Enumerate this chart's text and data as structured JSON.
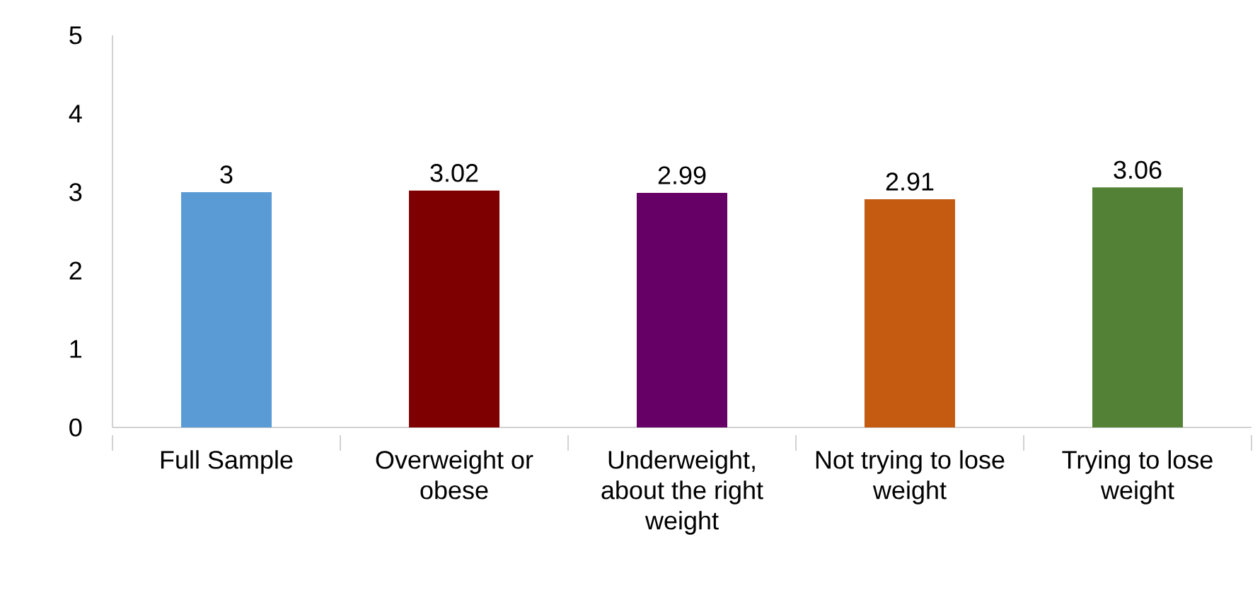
{
  "chart_data": {
    "type": "bar",
    "categories": [
      "Full Sample",
      "Overweight or obese",
      "Underweight, about the right weight",
      "Not trying to lose weight",
      "Trying to lose weight"
    ],
    "values": [
      3,
      3.02,
      2.99,
      2.91,
      3.06
    ],
    "colors": [
      "#5b9bd5",
      "#7f0000",
      "#660066",
      "#c55a11",
      "#538135"
    ],
    "ylim": [
      0,
      5
    ],
    "yticks": [
      0,
      1,
      2,
      3,
      4,
      5
    ],
    "grid": false,
    "data_labels": true
  }
}
